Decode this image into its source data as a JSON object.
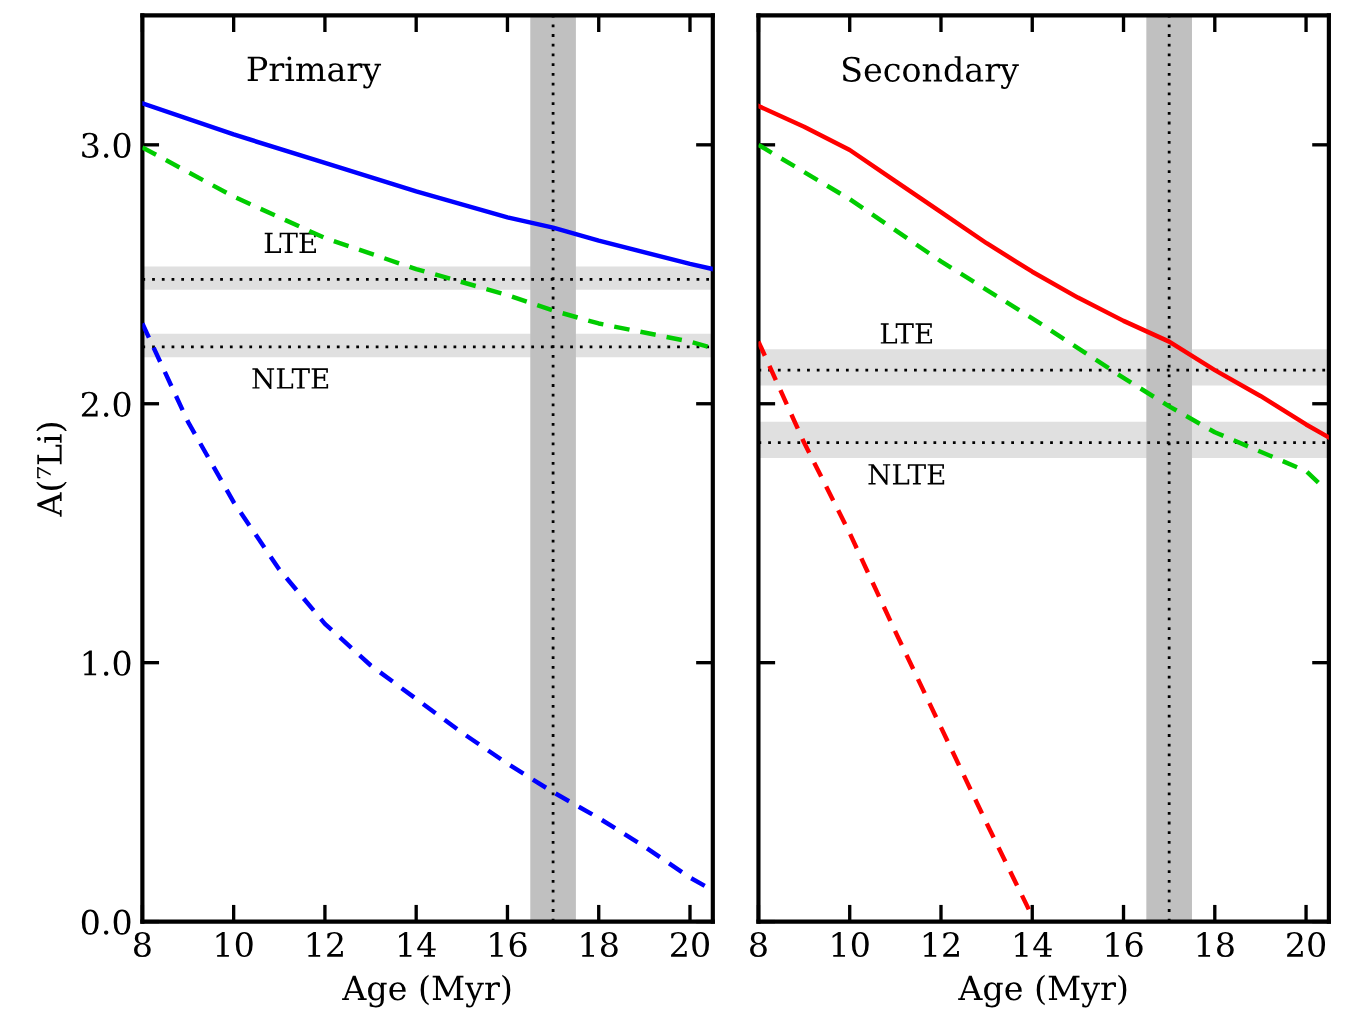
{
  "chart_data": [
    {
      "type": "line",
      "title": "Primary",
      "xlabel": "Age (Myr)",
      "ylabel": "A(⁷Li)",
      "xlim": [
        8,
        20.5
      ],
      "ylim": [
        0,
        3.5
      ],
      "xticks": [
        8,
        10,
        12,
        14,
        16,
        18,
        20
      ],
      "yticks": [
        {
          "value": 0,
          "label": "0.0"
        },
        {
          "value": 1,
          "label": "1.0"
        },
        {
          "value": 2,
          "label": "2.0"
        },
        {
          "value": 3,
          "label": "3.0"
        }
      ],
      "series": [
        {
          "color": "#0000ff",
          "line_style": "solid",
          "x": [
            8,
            10,
            12,
            14,
            16,
            17,
            18,
            20,
            20.5
          ],
          "values": [
            3.16,
            3.04,
            2.93,
            2.82,
            2.72,
            2.68,
            2.63,
            2.54,
            2.52
          ]
        },
        {
          "color": "#00cc00",
          "line_style": "dashed",
          "x": [
            8,
            10,
            12,
            14,
            16,
            17,
            18,
            20,
            20.4
          ],
          "values": [
            2.99,
            2.8,
            2.64,
            2.52,
            2.42,
            2.36,
            2.31,
            2.24,
            2.22
          ]
        },
        {
          "color": "#0000ff",
          "line_style": "dashed",
          "x": [
            8,
            9,
            10,
            11,
            12,
            13,
            14,
            15,
            16,
            17,
            18,
            19,
            20,
            20.5
          ],
          "values": [
            2.31,
            1.93,
            1.62,
            1.36,
            1.15,
            0.99,
            0.86,
            0.73,
            0.61,
            0.5,
            0.4,
            0.29,
            0.17,
            0.12
          ]
        }
      ],
      "bands": [
        {
          "axis": "x",
          "from": 16.5,
          "to": 17.5,
          "color": "#c0c0c0"
        },
        {
          "axis": "y",
          "from": 2.44,
          "to": 2.53,
          "color": "#e0e0e0"
        },
        {
          "axis": "y",
          "from": 2.18,
          "to": 2.27,
          "color": "#e0e0e0"
        }
      ],
      "ref_lines": [
        {
          "axis": "x",
          "value": 17,
          "line_style": "dotted"
        },
        {
          "axis": "y",
          "value": 2.48,
          "label": "LTE",
          "line_style": "dotted"
        },
        {
          "axis": "y",
          "value": 2.22,
          "label": "NLTE",
          "line_style": "dotted"
        }
      ]
    },
    {
      "type": "line",
      "title": "Secondary",
      "xlabel": "Age (Myr)",
      "xlim": [
        8,
        20.5
      ],
      "ylim": [
        0,
        3.5
      ],
      "xticks": [
        8,
        10,
        12,
        14,
        16,
        18,
        20
      ],
      "yticks": [
        {
          "value": 0,
          "label": null
        },
        {
          "value": 1,
          "label": null
        },
        {
          "value": 2,
          "label": null
        },
        {
          "value": 3,
          "label": null
        }
      ],
      "tick_labels": "x",
      "series": [
        {
          "color": "#ff0000",
          "line_style": "solid",
          "x": [
            8,
            9,
            10,
            11,
            12,
            13,
            14,
            15,
            16,
            17,
            18,
            19,
            20,
            20.5
          ],
          "values": [
            3.15,
            3.07,
            2.98,
            2.86,
            2.74,
            2.62,
            2.51,
            2.41,
            2.32,
            2.24,
            2.13,
            2.03,
            1.92,
            1.87
          ]
        },
        {
          "color": "#00cc00",
          "line_style": "dashed",
          "x": [
            8,
            10,
            12,
            14,
            16,
            17,
            18,
            20,
            20.3
          ],
          "values": [
            3.0,
            2.79,
            2.55,
            2.33,
            2.1,
            1.99,
            1.89,
            1.74,
            1.69
          ]
        },
        {
          "color": "#ff0000",
          "line_style": "dashed",
          "x": [
            8,
            9,
            10,
            11,
            12,
            13,
            14
          ],
          "values": [
            2.24,
            1.85,
            1.5,
            1.12,
            0.75,
            0.38,
            0.02
          ]
        }
      ],
      "bands": [
        {
          "axis": "x",
          "from": 16.5,
          "to": 17.5,
          "color": "#c0c0c0"
        },
        {
          "axis": "y",
          "from": 2.07,
          "to": 2.21,
          "color": "#e0e0e0"
        },
        {
          "axis": "y",
          "from": 1.79,
          "to": 1.93,
          "color": "#e0e0e0"
        }
      ],
      "ref_lines": [
        {
          "axis": "x",
          "value": 17,
          "line_style": "dotted"
        },
        {
          "axis": "y",
          "value": 2.13,
          "label": "LTE",
          "line_style": "dotted"
        },
        {
          "axis": "y",
          "value": 1.85,
          "label": "NLTE",
          "line_style": "dotted"
        }
      ]
    }
  ]
}
